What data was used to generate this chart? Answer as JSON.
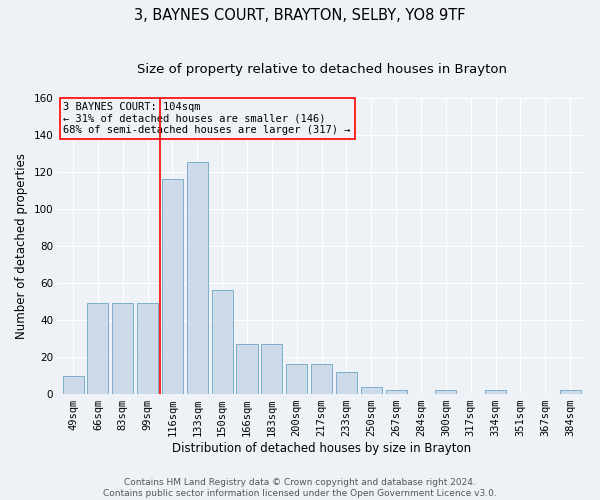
{
  "title": "3, BAYNES COURT, BRAYTON, SELBY, YO8 9TF",
  "subtitle": "Size of property relative to detached houses in Brayton",
  "xlabel": "Distribution of detached houses by size in Brayton",
  "ylabel": "Number of detached properties",
  "bar_labels": [
    "49sqm",
    "66sqm",
    "83sqm",
    "99sqm",
    "116sqm",
    "133sqm",
    "150sqm",
    "166sqm",
    "183sqm",
    "200sqm",
    "217sqm",
    "233sqm",
    "250sqm",
    "267sqm",
    "284sqm",
    "300sqm",
    "317sqm",
    "334sqm",
    "351sqm",
    "367sqm",
    "384sqm"
  ],
  "bar_values": [
    10,
    49,
    49,
    49,
    116,
    125,
    56,
    27,
    27,
    16,
    16,
    12,
    4,
    2,
    0,
    2,
    0,
    2,
    0,
    0,
    2
  ],
  "bar_color": "#cddaea",
  "bar_edgecolor": "#7aafc8",
  "ylim": [
    0,
    160
  ],
  "yticks": [
    0,
    20,
    40,
    60,
    80,
    100,
    120,
    140,
    160
  ],
  "vline_x": 3.5,
  "annotation_lines": [
    "3 BAYNES COURT: 104sqm",
    "← 31% of detached houses are smaller (146)",
    "68% of semi-detached houses are larger (317) →"
  ],
  "footer_line1": "Contains HM Land Registry data © Crown copyright and database right 2024.",
  "footer_line2": "Contains public sector information licensed under the Open Government Licence v3.0.",
  "background_color": "#eef2f7",
  "grid_color": "#ffffff",
  "title_fontsize": 10.5,
  "subtitle_fontsize": 9.5,
  "axis_label_fontsize": 8.5,
  "tick_fontsize": 7.5,
  "annotation_fontsize": 7.5,
  "footer_fontsize": 6.5
}
